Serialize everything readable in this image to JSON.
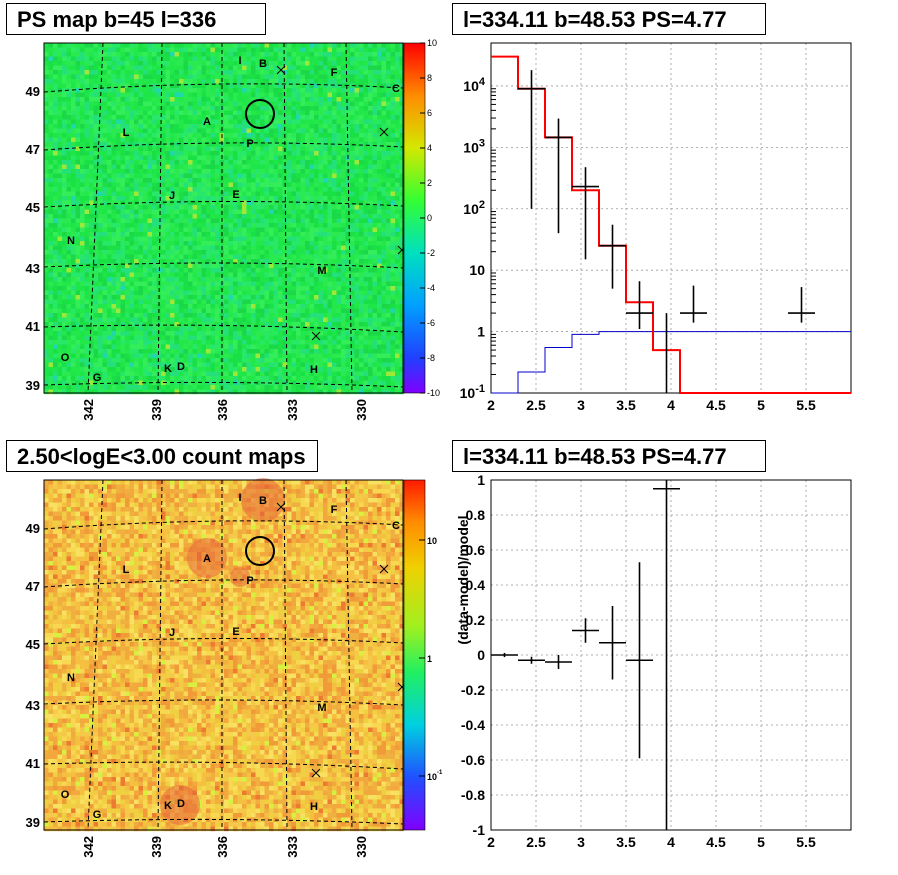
{
  "panels": {
    "top_left_title": "PS map b=45 l=336",
    "top_right_title": "l=334.11 b=48.53 PS=4.77",
    "bottom_left_title": "2.50<logE<3.00 count maps",
    "bottom_right_title": "l=334.11 b=48.53 PS=4.77"
  },
  "colors": {
    "ps_map_base": "#22e84a",
    "count_map_base": "#f5c84a",
    "hotspot": "#e8643a",
    "data": "#000000",
    "model": "#ff0000",
    "background_model": "#0000cc"
  },
  "chart_data": [
    {
      "type": "heatmap",
      "name": "ps_map",
      "title": "PS map b=45 l=336",
      "x_tick_labels": [
        "342",
        "339",
        "336",
        "333",
        "330"
      ],
      "y_tick_labels": [
        "49",
        "47",
        "45",
        "43",
        "41",
        "39"
      ],
      "colorbar": {
        "min": -10,
        "max": 10,
        "labels": [
          "10",
          "8",
          "6",
          "4",
          "2",
          "0",
          "-2",
          "-4",
          "-6",
          "-8",
          "-10"
        ]
      },
      "sources": [
        "I",
        "B",
        "F",
        "C",
        "A",
        "L",
        "P",
        "J",
        "E",
        "N",
        "M",
        "O",
        "G",
        "K",
        "D",
        "H"
      ],
      "marker": "circle at P"
    },
    {
      "type": "line",
      "name": "spectrum",
      "title": "l=334.11 b=48.53 PS=4.77",
      "x_range": [
        2,
        6
      ],
      "y_scale": "log",
      "y_range": [
        0.1,
        50000
      ],
      "x_tick_labels": [
        "2",
        "2.5",
        "3",
        "3.5",
        "4",
        "4.5",
        "5",
        "5.5"
      ],
      "y_tick_labels": [
        "10^-1",
        "1",
        "10",
        "10^2",
        "10^3",
        "10^4"
      ],
      "data_points": [
        {
          "x": 2.45,
          "y": 9000,
          "xerr": 0.15,
          "yerr_low": 8900,
          "yerr_high": 9100
        },
        {
          "x": 2.75,
          "y": 1450,
          "xerr": 0.15,
          "yerr_low": 1410,
          "yerr_high": 1490
        },
        {
          "x": 3.05,
          "y": 230,
          "xerr": 0.15,
          "yerr_low": 215,
          "yerr_high": 245
        },
        {
          "x": 3.35,
          "y": 25,
          "xerr": 0.15,
          "yerr_low": 20,
          "yerr_high": 30
        },
        {
          "x": 3.65,
          "y": 2,
          "xerr": 0.15,
          "yerr_low": 0.9,
          "yerr_high": 4.6
        },
        {
          "x": 4.25,
          "y": 2,
          "xerr": 0.15,
          "yerr_low": 0.6,
          "yerr_high": 3.6
        },
        {
          "x": 5.45,
          "y": 2,
          "xerr": 0.15,
          "yerr_low": 0.6,
          "yerr_high": 3.3
        }
      ],
      "upper_limits": [
        {
          "x": 3.95,
          "y": 0.1
        }
      ],
      "model_total": {
        "edges": [
          2.0,
          2.3,
          2.6,
          2.9,
          3.2,
          3.5,
          3.8,
          4.1,
          6.0
        ],
        "values": [
          30000,
          9000,
          1450,
          200,
          25,
          3,
          0.5,
          0.1
        ]
      },
      "model_background": {
        "edges": [
          2.0,
          2.3,
          2.6,
          2.9,
          3.2,
          3.5,
          3.8,
          6.0
        ],
        "values": [
          0.1,
          0.22,
          0.55,
          0.9,
          1.0,
          1.0,
          1.0
        ]
      }
    },
    {
      "type": "heatmap",
      "name": "count_map",
      "title": "2.50<logE<3.00 count maps",
      "x_tick_labels": [
        "342",
        "339",
        "336",
        "333",
        "330"
      ],
      "y_tick_labels": [
        "49",
        "47",
        "45",
        "43",
        "41",
        "39"
      ],
      "colorbar": {
        "scale": "log",
        "labels": [
          "10",
          "1",
          "10^-1"
        ]
      },
      "sources": [
        "I",
        "B",
        "F",
        "C",
        "A",
        "L",
        "P",
        "J",
        "E",
        "N",
        "M",
        "O",
        "G",
        "K",
        "D",
        "H"
      ],
      "marker": "circle at P"
    },
    {
      "type": "scatter",
      "name": "residuals",
      "title": "l=334.11 b=48.53 PS=4.77",
      "ylabel": "(data-model)/model",
      "x_range": [
        2,
        6
      ],
      "y_range": [
        -1,
        1
      ],
      "x_tick_labels": [
        "2",
        "2.5",
        "3",
        "3.5",
        "4",
        "4.5",
        "5",
        "5.5"
      ],
      "y_tick_labels": [
        "-1",
        "-0.8",
        "-0.6",
        "-0.4",
        "-0.2",
        "0",
        "0.2",
        "0.4",
        "0.6",
        "0.8",
        "1"
      ],
      "points": [
        {
          "x": 2.15,
          "y": 0.0,
          "xerr": 0.15,
          "yerr": 0.012
        },
        {
          "x": 2.45,
          "y": -0.03,
          "xerr": 0.15,
          "yerr": 0.02
        },
        {
          "x": 2.75,
          "y": -0.04,
          "xerr": 0.15,
          "yerr": 0.04
        },
        {
          "x": 3.05,
          "y": 0.14,
          "xerr": 0.15,
          "yerr": 0.07
        },
        {
          "x": 3.35,
          "y": 0.07,
          "xerr": 0.15,
          "yerr": 0.21
        },
        {
          "x": 3.65,
          "y": -0.03,
          "xerr": 0.15,
          "yerr": 0.56
        },
        {
          "x": 3.95,
          "y": 0.95,
          "xerr": 0.15,
          "yerr_low": 1.95,
          "yerr_high": 0.05
        }
      ]
    }
  ]
}
